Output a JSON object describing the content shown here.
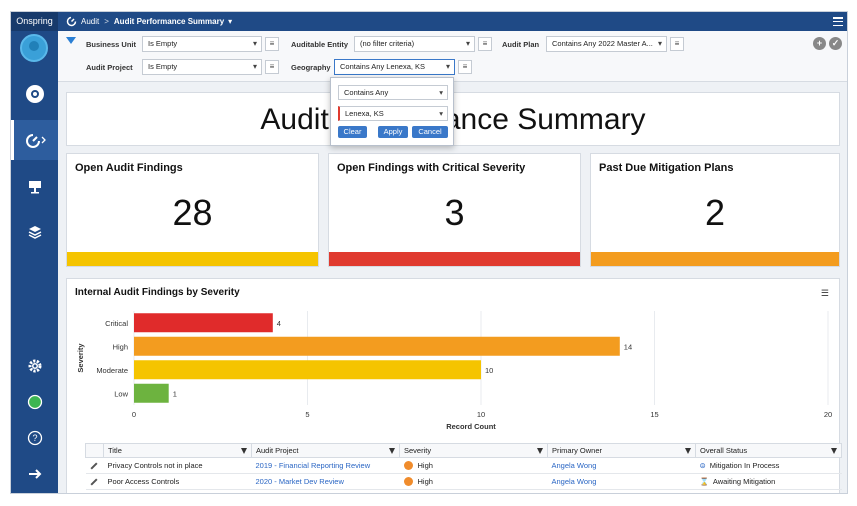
{
  "app": {
    "brand": "Onspring"
  },
  "breadcrumb": {
    "root": "Audit",
    "separator": ">",
    "current": "Audit Performance Summary",
    "caret": "▾"
  },
  "filters": {
    "business_unit": {
      "label": "Business Unit",
      "value": "Is Empty"
    },
    "auditable_entity": {
      "label": "Auditable Entity",
      "value": "(no filter criteria)"
    },
    "audit_plan": {
      "label": "Audit Plan",
      "value": "Contains Any 2022 Master A..."
    },
    "audit_project": {
      "label": "Audit Project",
      "value": "Is Empty"
    },
    "geography": {
      "label": "Geography",
      "value": "Contains Any Lenexa, KS"
    },
    "list_icon": "≡",
    "add_icon": "+",
    "ok_icon": "✓"
  },
  "popup": {
    "operator": "Contains Any",
    "value": "Lenexa, KS",
    "clear": "Clear",
    "apply": "Apply",
    "cancel": "Cancel"
  },
  "page_title": "Audit Performance Summary",
  "kpis": [
    {
      "title": "Open Audit Findings",
      "value": "28",
      "color": "#f5c400"
    },
    {
      "title": "Open Findings with Critical Severity",
      "value": "3",
      "color": "#e03a2f"
    },
    {
      "title": "Past Due Mitigation Plans",
      "value": "2",
      "color": "#f39c1f"
    }
  ],
  "chart_section": {
    "title": "Internal Audit Findings by Severity",
    "controls": "☰"
  },
  "chart_data": {
    "type": "bar",
    "orientation": "horizontal",
    "categories": [
      "Critical",
      "High",
      "Moderate",
      "Low"
    ],
    "values": [
      4,
      14,
      10,
      1
    ],
    "colors": [
      "#e02b2b",
      "#f39c1f",
      "#f5c400",
      "#6db33f"
    ],
    "xlabel": "Record Count",
    "ylabel": "Severity",
    "xlim": [
      0,
      20
    ],
    "xticks": [
      0,
      5,
      10,
      15,
      20
    ]
  },
  "table": {
    "columns": [
      "Title",
      "Audit Project",
      "Severity",
      "Primary Owner",
      "Overall Status"
    ],
    "rows": [
      {
        "title": "Privacy Controls not in place",
        "project": "2019 - Financial Reporting Review",
        "severity": "High",
        "owner": "Angela Wong",
        "status": "Mitigation In Process",
        "status_icon": "⊜"
      },
      {
        "title": "Poor Access Controls",
        "project": "2020 - Market Dev Review",
        "severity": "High",
        "owner": "Angela Wong",
        "status": "Awaiting Mitigation",
        "status_icon": "⌛"
      }
    ]
  }
}
